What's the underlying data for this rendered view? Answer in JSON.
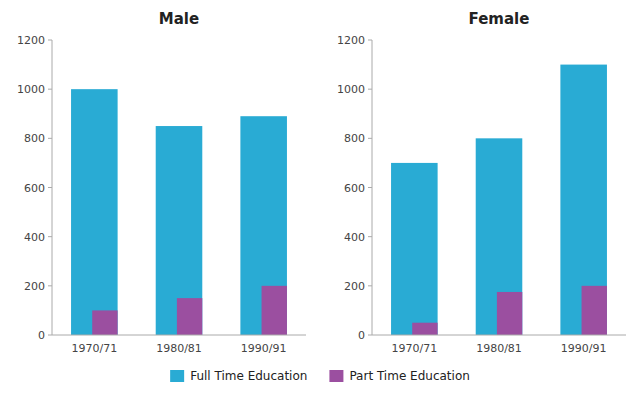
{
  "chart_data": [
    {
      "type": "bar",
      "title": "Male",
      "categories": [
        "1970/71",
        "1980/81",
        "1990/91"
      ],
      "series": [
        {
          "name": "Full Time Education",
          "color": "#29ABD4",
          "values": [
            1000,
            850,
            890
          ]
        },
        {
          "name": "Part Time Education",
          "color": "#9B4FA0",
          "values": [
            100,
            150,
            200
          ]
        }
      ],
      "ylim": [
        0,
        1200
      ],
      "yticks": [
        0,
        200,
        400,
        600,
        800,
        1000,
        1200
      ],
      "grid": false,
      "legend": "bottom"
    },
    {
      "type": "bar",
      "title": "Female",
      "categories": [
        "1970/71",
        "1980/81",
        "1990/91"
      ],
      "series": [
        {
          "name": "Full Time Education",
          "color": "#29ABD4",
          "values": [
            700,
            800,
            1100
          ]
        },
        {
          "name": "Part Time Education",
          "color": "#9B4FA0",
          "values": [
            50,
            175,
            200
          ]
        }
      ],
      "ylim": [
        0,
        1200
      ],
      "yticks": [
        0,
        200,
        400,
        600,
        800,
        1000,
        1200
      ],
      "grid": false
    }
  ]
}
